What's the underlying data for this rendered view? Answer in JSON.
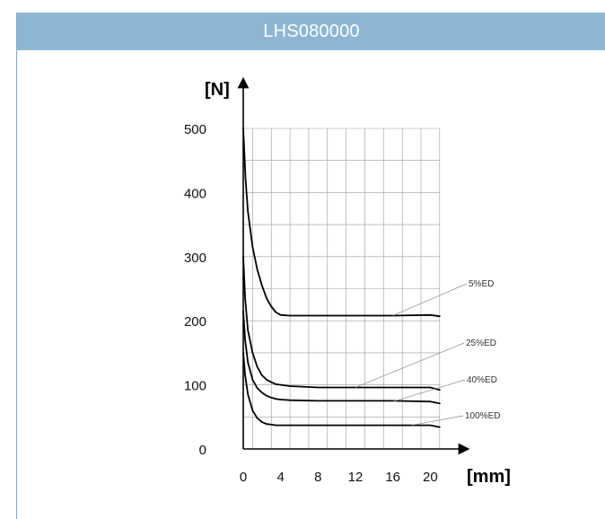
{
  "header": {
    "title": "LHS080000"
  },
  "chart_data": {
    "type": "line",
    "title": "LHS080000",
    "ylabel": "[N]",
    "xlabel": "[mm]",
    "xlim": [
      0,
      21.5
    ],
    "ylim": [
      0,
      500
    ],
    "x_ticks": [
      0,
      4,
      8,
      12,
      16,
      20
    ],
    "y_ticks": [
      0,
      100,
      200,
      300,
      400,
      500
    ],
    "grid": true,
    "series": [
      {
        "name": "5%ED",
        "x": [
          0,
          0.25,
          0.5,
          1,
          1.5,
          2,
          2.5,
          3,
          3.5,
          4,
          5,
          8,
          12,
          16,
          20,
          21
        ],
        "y": [
          500,
          420,
          370,
          315,
          280,
          255,
          235,
          222,
          213,
          209,
          208,
          208,
          208,
          208,
          209,
          207
        ]
      },
      {
        "name": "25%ED",
        "x": [
          0,
          0.2,
          0.5,
          1,
          1.5,
          2,
          2.5,
          3,
          3.5,
          4,
          5,
          8,
          12,
          16,
          20,
          21
        ],
        "y": [
          300,
          235,
          185,
          150,
          128,
          115,
          108,
          104,
          101,
          100,
          98,
          96,
          96,
          96,
          96,
          92
        ]
      },
      {
        "name": "40%ED",
        "x": [
          0,
          0.2,
          0.5,
          1,
          1.5,
          2,
          2.5,
          3,
          3.5,
          4,
          5,
          8,
          12,
          16,
          20,
          21
        ],
        "y": [
          215,
          170,
          135,
          108,
          95,
          88,
          83,
          80,
          78,
          77,
          76,
          75,
          75,
          75,
          74,
          71
        ]
      },
      {
        "name": "100%ED",
        "x": [
          0,
          0.2,
          0.5,
          1,
          1.5,
          2,
          2.5,
          3,
          3.5,
          4,
          5,
          8,
          12,
          16,
          20,
          21
        ],
        "y": [
          150,
          115,
          85,
          60,
          48,
          42,
          39,
          38,
          37,
          37,
          37,
          37,
          37,
          37,
          37,
          34
        ]
      }
    ],
    "annotations": [
      "5%ED",
      "25%ED",
      "40%ED",
      "100%ED"
    ]
  }
}
